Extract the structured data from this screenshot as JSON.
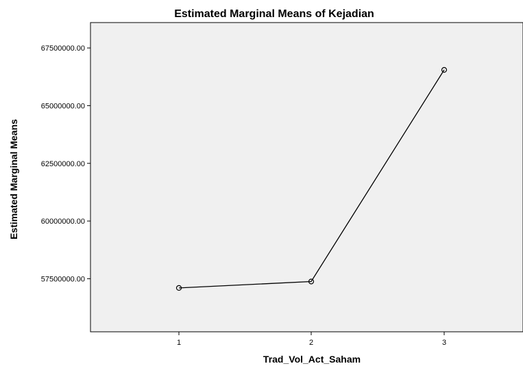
{
  "chart_data": {
    "type": "line",
    "title": "Estimated Marginal Means of Kejadian",
    "xlabel": "Trad_Vol_Act_Saham",
    "ylabel": "Estimated Marginal Means",
    "categories": [
      "1",
      "2",
      "3"
    ],
    "series": [
      {
        "values": [
          57100000,
          57380000,
          66550000
        ]
      }
    ],
    "ylim": [
      55200000,
      68600000
    ],
    "yticks": [
      57500000,
      60000000,
      62500000,
      65000000,
      67500000
    ],
    "ytick_labels": [
      "57500000.00",
      "60000000.00",
      "62500000.00",
      "65000000.00",
      "67500000.00"
    ],
    "grid": false,
    "legend": "none",
    "colors": {
      "plot_background": "#f0f0f0",
      "line": "#000000"
    }
  }
}
